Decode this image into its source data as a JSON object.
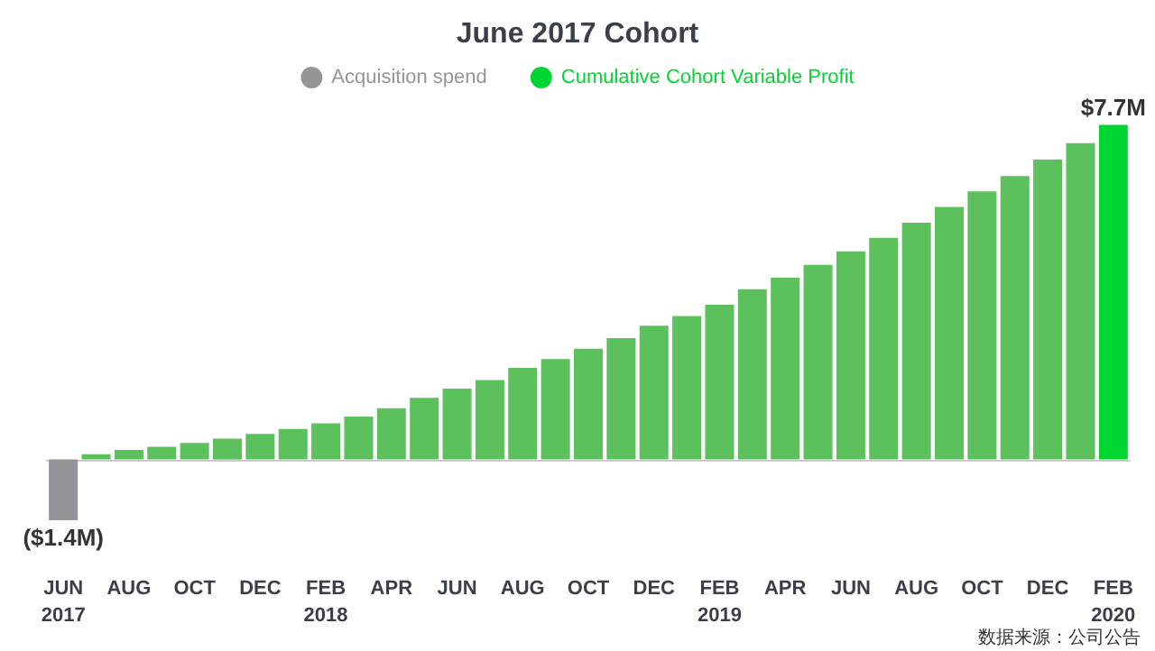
{
  "chart_data": {
    "type": "bar",
    "title": "June 2017 Cohort",
    "legend": "top",
    "categories": [
      "JUN\n2017",
      null,
      "AUG",
      null,
      "OCT",
      null,
      "DEC",
      null,
      "FEB\n2018",
      null,
      "APR",
      null,
      "JUN",
      null,
      "AUG",
      null,
      "OCT",
      null,
      "DEC",
      null,
      "FEB\n2019",
      null,
      "APR",
      null,
      "JUN",
      null,
      "AUG",
      null,
      "OCT",
      null,
      "DEC",
      null,
      "FEB\n2020"
    ],
    "series": [
      {
        "name": "Acquisition spend",
        "color": "#939598",
        "values": [
          -1.4,
          null,
          null,
          null,
          null,
          null,
          null,
          null,
          null,
          null,
          null,
          null,
          null,
          null,
          null,
          null,
          null,
          null,
          null,
          null,
          null,
          null,
          null,
          null,
          null,
          null,
          null,
          null,
          null,
          null,
          null,
          null,
          null
        ],
        "value_labels": [
          "($1.4M)",
          null,
          null,
          null,
          null,
          null,
          null,
          null,
          null,
          null,
          null,
          null,
          null,
          null,
          null,
          null,
          null,
          null,
          null,
          null,
          null,
          null,
          null,
          null,
          null,
          null,
          null,
          null,
          null,
          null,
          null,
          null,
          null
        ]
      },
      {
        "name": "Cumulative Cohort Variable Profit",
        "color": "#00d632",
        "values": [
          null,
          0.12,
          0.22,
          0.29,
          0.38,
          0.48,
          0.59,
          0.7,
          0.83,
          0.99,
          1.18,
          1.42,
          1.63,
          1.83,
          2.11,
          2.31,
          2.55,
          2.79,
          3.08,
          3.3,
          3.56,
          3.92,
          4.18,
          4.48,
          4.79,
          5.1,
          5.45,
          5.81,
          6.17,
          6.52,
          6.9,
          7.28,
          7.7
        ],
        "colors": [
          "#5cc05c",
          "#5cc05c",
          "#5cc05c",
          "#5cc05c",
          "#5cc05c",
          "#5cc05c",
          "#5cc05c",
          "#5cc05c",
          "#5cc05c",
          "#5cc05c",
          "#5cc05c",
          "#5cc05c",
          "#5cc05c",
          "#5cc05c",
          "#5cc05c",
          "#5cc05c",
          "#5cc05c",
          "#5cc05c",
          "#5cc05c",
          "#5cc05c",
          "#5cc05c",
          "#5cc05c",
          "#5cc05c",
          "#5cc05c",
          "#5cc05c",
          "#5cc05c",
          "#5cc05c",
          "#5cc05c",
          "#5cc05c",
          "#5cc05c",
          "#5cc05c",
          "#5cc05c",
          "#00d632"
        ],
        "value_labels": [
          null,
          null,
          null,
          null,
          null,
          null,
          null,
          null,
          null,
          null,
          null,
          null,
          null,
          null,
          null,
          null,
          null,
          null,
          null,
          null,
          null,
          null,
          null,
          null,
          null,
          null,
          null,
          null,
          null,
          null,
          null,
          null,
          "$7.7M"
        ]
      }
    ],
    "annotations": [
      "数据来源：公司公告"
    ]
  }
}
